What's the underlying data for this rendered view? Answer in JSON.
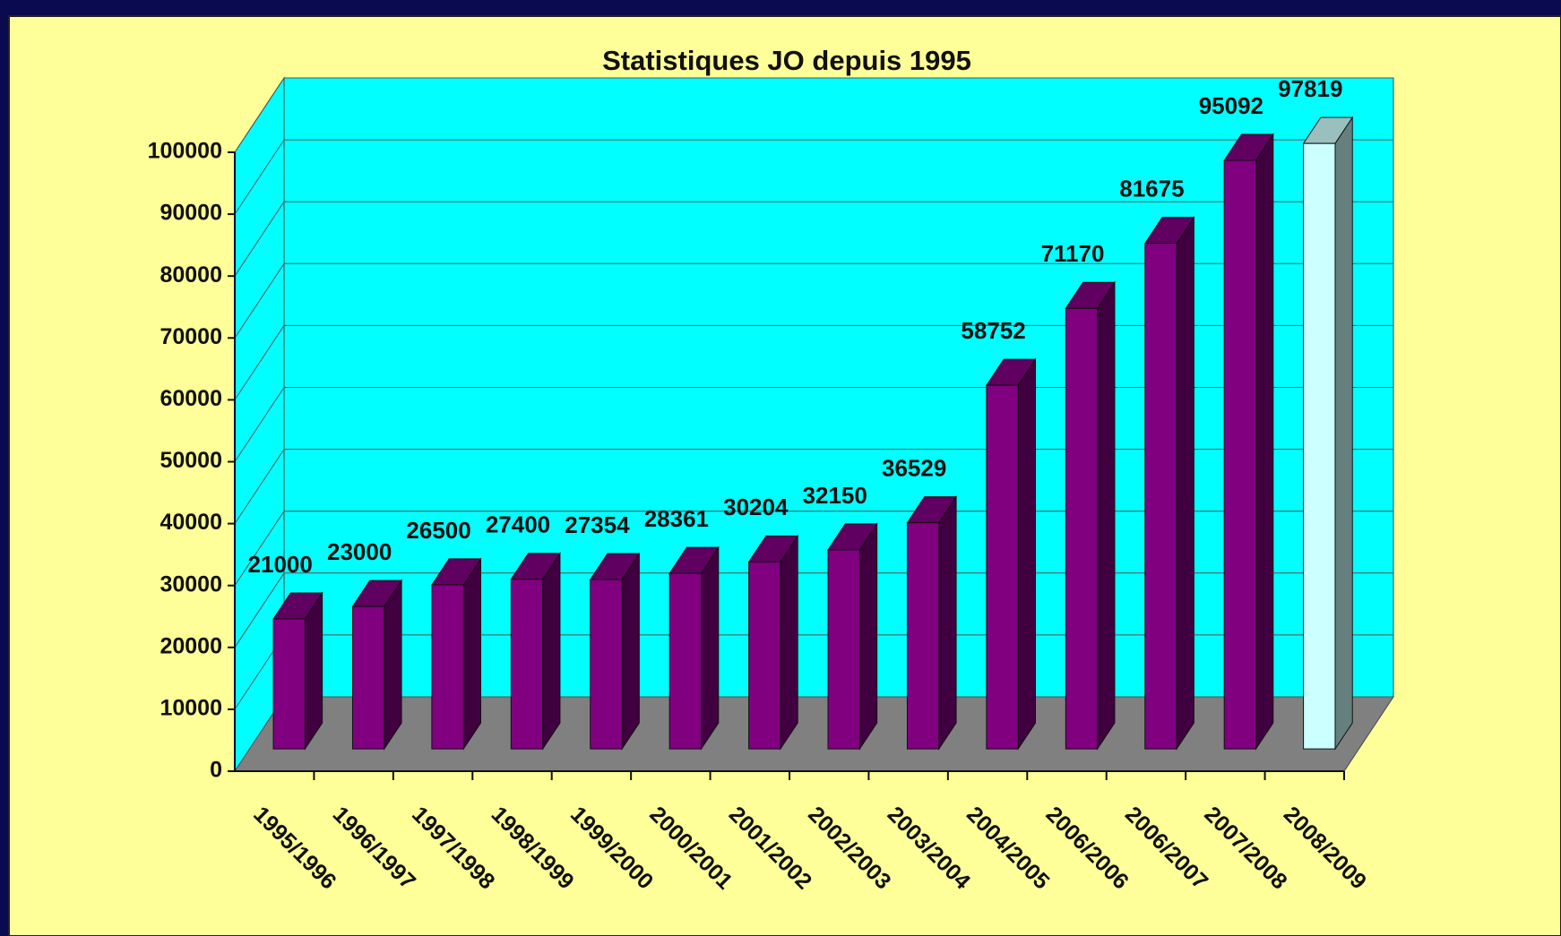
{
  "chart_data": {
    "type": "bar3d",
    "title": "Statistiques JO depuis 1995",
    "categories": [
      "1995/1996",
      "1996/1997",
      "1997/1998",
      "1998/1999",
      "1999/2000",
      "2000/2001",
      "2001/2002",
      "2002/2003",
      "2003/2004",
      "2004/2005",
      "2006/2006",
      "2006/2007",
      "2007/2008",
      "2008/2009"
    ],
    "values": [
      21000,
      23000,
      26500,
      27400,
      27354,
      28361,
      30204,
      32150,
      36529,
      58752,
      71170,
      81675,
      95092,
      97819
    ],
    "colors": [
      "#800080",
      "#800080",
      "#800080",
      "#800080",
      "#800080",
      "#800080",
      "#800080",
      "#800080",
      "#800080",
      "#800080",
      "#800080",
      "#800080",
      "#800080",
      "#ccffff"
    ],
    "ylim": [
      0,
      100000
    ],
    "yticks": [
      0,
      10000,
      20000,
      30000,
      40000,
      50000,
      60000,
      70000,
      80000,
      90000,
      100000
    ],
    "grid": true,
    "wall_color": "#00ffff",
    "floor_color": "#808080"
  }
}
